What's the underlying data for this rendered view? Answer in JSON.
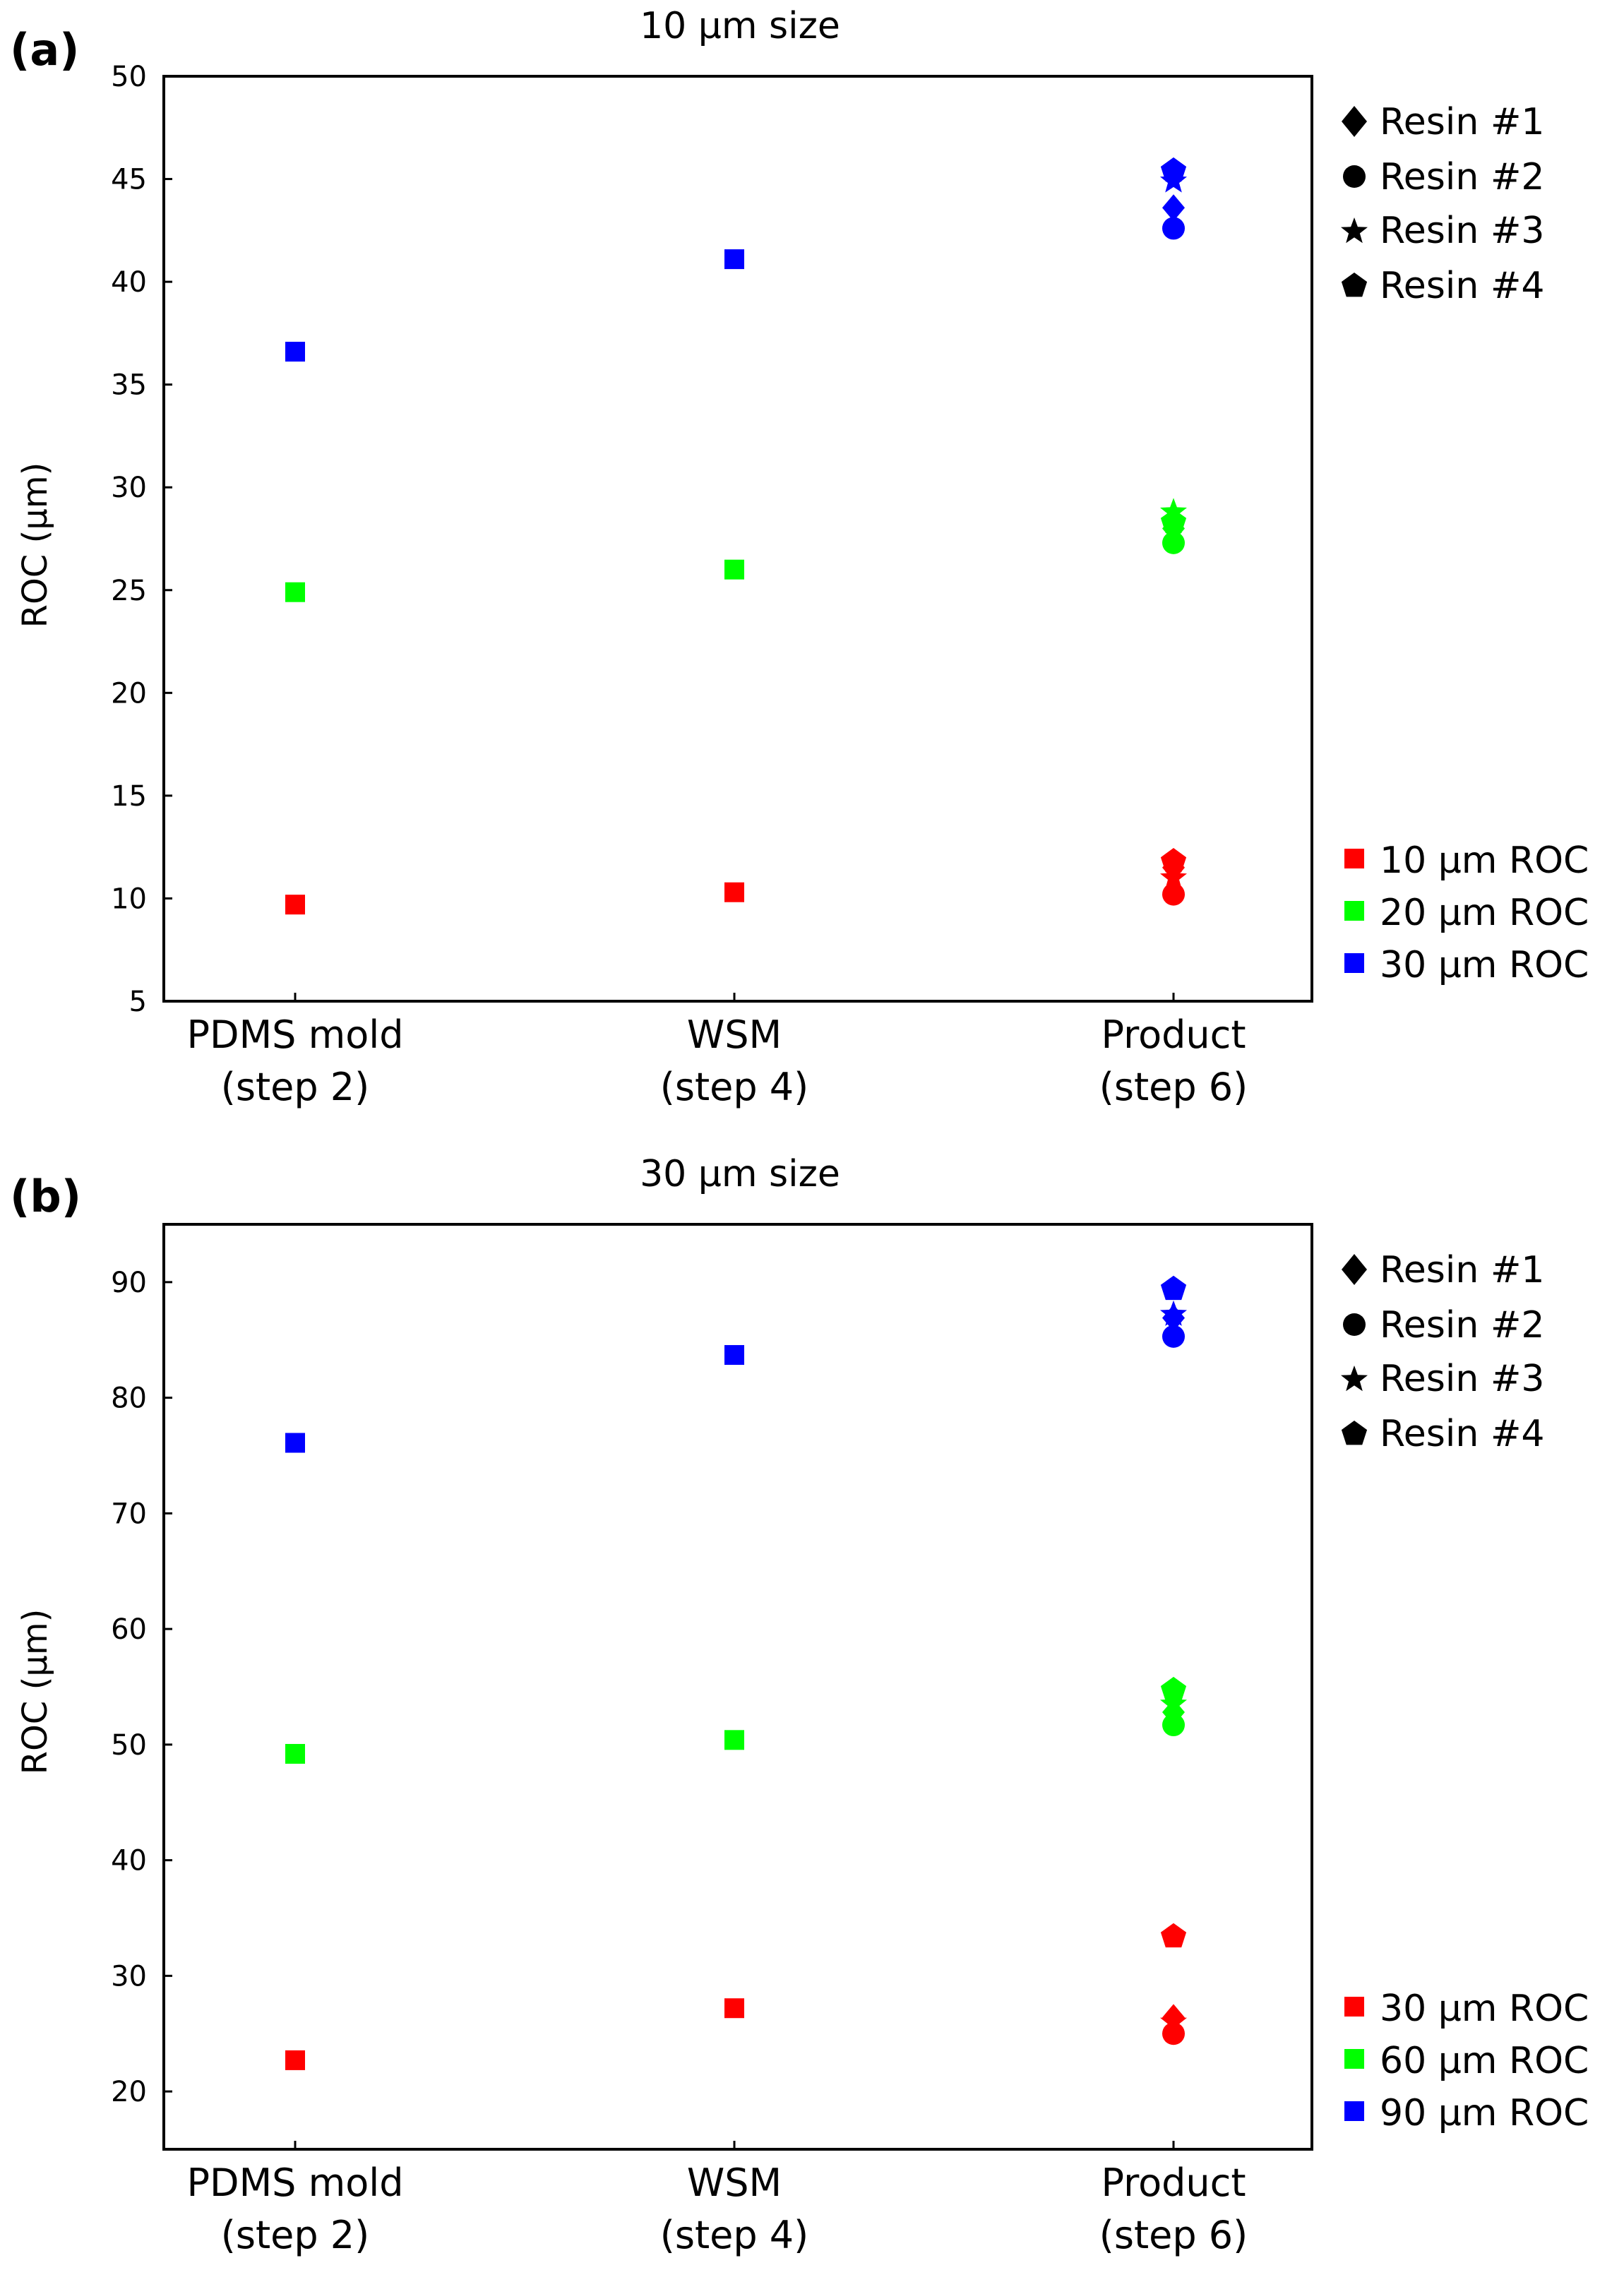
{
  "chart_data": [
    {
      "type": "scatter",
      "panel_label": "(a)",
      "title": "10 μm size",
      "ylabel": "ROC (μm)",
      "xlabel": "",
      "ylim": [
        5,
        50
      ],
      "yticks": [
        5,
        10,
        15,
        20,
        25,
        30,
        35,
        40,
        45,
        50
      ],
      "grid": false,
      "categories": [
        {
          "line1": "PDMS mold",
          "line2": "(step 2)"
        },
        {
          "line1": "WSM",
          "line2": "(step 4)"
        },
        {
          "line1": "Product",
          "line2": "(step 6)"
        }
      ],
      "shape_legend": [
        {
          "label": "Resin #1",
          "marker": "diamond"
        },
        {
          "label": "Resin #2",
          "marker": "circle"
        },
        {
          "label": "Resin #3",
          "marker": "star"
        },
        {
          "label": "Resin #4",
          "marker": "pentagon"
        }
      ],
      "color_legend": [
        {
          "label": "10 μm ROC",
          "color": "#ff0000"
        },
        {
          "label": "20 μm ROC",
          "color": "#00ff00"
        },
        {
          "label": "30 μm ROC",
          "color": "#0000ff"
        }
      ],
      "points": [
        {
          "x": 0,
          "y": 9.7,
          "marker": "square",
          "color": "#ff0000"
        },
        {
          "x": 0,
          "y": 24.9,
          "marker": "square",
          "color": "#00ff00"
        },
        {
          "x": 0,
          "y": 36.6,
          "marker": "square",
          "color": "#0000ff"
        },
        {
          "x": 1,
          "y": 10.3,
          "marker": "square",
          "color": "#ff0000"
        },
        {
          "x": 1,
          "y": 26.0,
          "marker": "square",
          "color": "#00ff00"
        },
        {
          "x": 1,
          "y": 41.1,
          "marker": "square",
          "color": "#0000ff"
        },
        {
          "x": 2,
          "y": 11.5,
          "marker": "diamond",
          "color": "#ff0000"
        },
        {
          "x": 2,
          "y": 10.2,
          "marker": "circle",
          "color": "#ff0000"
        },
        {
          "x": 2,
          "y": 11.0,
          "marker": "star",
          "color": "#ff0000"
        },
        {
          "x": 2,
          "y": 11.8,
          "marker": "pentagon",
          "color": "#ff0000"
        },
        {
          "x": 2,
          "y": 28.0,
          "marker": "diamond",
          "color": "#00ff00"
        },
        {
          "x": 2,
          "y": 27.3,
          "marker": "circle",
          "color": "#00ff00"
        },
        {
          "x": 2,
          "y": 28.8,
          "marker": "star",
          "color": "#00ff00"
        },
        {
          "x": 2,
          "y": 28.3,
          "marker": "pentagon",
          "color": "#00ff00"
        },
        {
          "x": 2,
          "y": 43.6,
          "marker": "diamond",
          "color": "#0000ff"
        },
        {
          "x": 2,
          "y": 42.6,
          "marker": "circle",
          "color": "#0000ff"
        },
        {
          "x": 2,
          "y": 44.9,
          "marker": "star",
          "color": "#0000ff"
        },
        {
          "x": 2,
          "y": 45.4,
          "marker": "pentagon",
          "color": "#0000ff"
        }
      ]
    },
    {
      "type": "scatter",
      "panel_label": "(b)",
      "title": "30 μm size",
      "ylabel": "ROC (μm)",
      "xlabel": "",
      "ylim": [
        15,
        95
      ],
      "yticks": [
        20,
        30,
        40,
        50,
        60,
        70,
        80,
        90
      ],
      "grid": false,
      "categories": [
        {
          "line1": "PDMS mold",
          "line2": "(step 2)"
        },
        {
          "line1": "WSM",
          "line2": "(step 4)"
        },
        {
          "line1": "Product",
          "line2": "(step 6)"
        }
      ],
      "shape_legend": [
        {
          "label": "Resin #1",
          "marker": "diamond"
        },
        {
          "label": "Resin #2",
          "marker": "circle"
        },
        {
          "label": "Resin #3",
          "marker": "star"
        },
        {
          "label": "Resin #4",
          "marker": "pentagon"
        }
      ],
      "color_legend": [
        {
          "label": "30 μm ROC",
          "color": "#ff0000"
        },
        {
          "label": "60 μm ROC",
          "color": "#00ff00"
        },
        {
          "label": "90 μm ROC",
          "color": "#0000ff"
        }
      ],
      "points": [
        {
          "x": 0,
          "y": 22.7,
          "marker": "square",
          "color": "#ff0000"
        },
        {
          "x": 0,
          "y": 49.2,
          "marker": "square",
          "color": "#00ff00"
        },
        {
          "x": 0,
          "y": 76.1,
          "marker": "square",
          "color": "#0000ff"
        },
        {
          "x": 1,
          "y": 27.2,
          "marker": "square",
          "color": "#ff0000"
        },
        {
          "x": 1,
          "y": 50.4,
          "marker": "square",
          "color": "#00ff00"
        },
        {
          "x": 1,
          "y": 83.7,
          "marker": "square",
          "color": "#0000ff"
        },
        {
          "x": 2,
          "y": 26.4,
          "marker": "diamond",
          "color": "#ff0000"
        },
        {
          "x": 2,
          "y": 25.0,
          "marker": "circle",
          "color": "#ff0000"
        },
        {
          "x": 2,
          "y": 26.0,
          "marker": "star",
          "color": "#ff0000"
        },
        {
          "x": 2,
          "y": 33.4,
          "marker": "pentagon",
          "color": "#ff0000"
        },
        {
          "x": 2,
          "y": 52.8,
          "marker": "diamond",
          "color": "#00ff00"
        },
        {
          "x": 2,
          "y": 51.7,
          "marker": "circle",
          "color": "#00ff00"
        },
        {
          "x": 2,
          "y": 53.5,
          "marker": "star",
          "color": "#00ff00"
        },
        {
          "x": 2,
          "y": 54.7,
          "marker": "pentagon",
          "color": "#00ff00"
        },
        {
          "x": 2,
          "y": 86.9,
          "marker": "diamond",
          "color": "#0000ff"
        },
        {
          "x": 2,
          "y": 85.3,
          "marker": "circle",
          "color": "#0000ff"
        },
        {
          "x": 2,
          "y": 87.2,
          "marker": "star",
          "color": "#0000ff"
        },
        {
          "x": 2,
          "y": 89.4,
          "marker": "pentagon",
          "color": "#0000ff"
        }
      ]
    }
  ]
}
